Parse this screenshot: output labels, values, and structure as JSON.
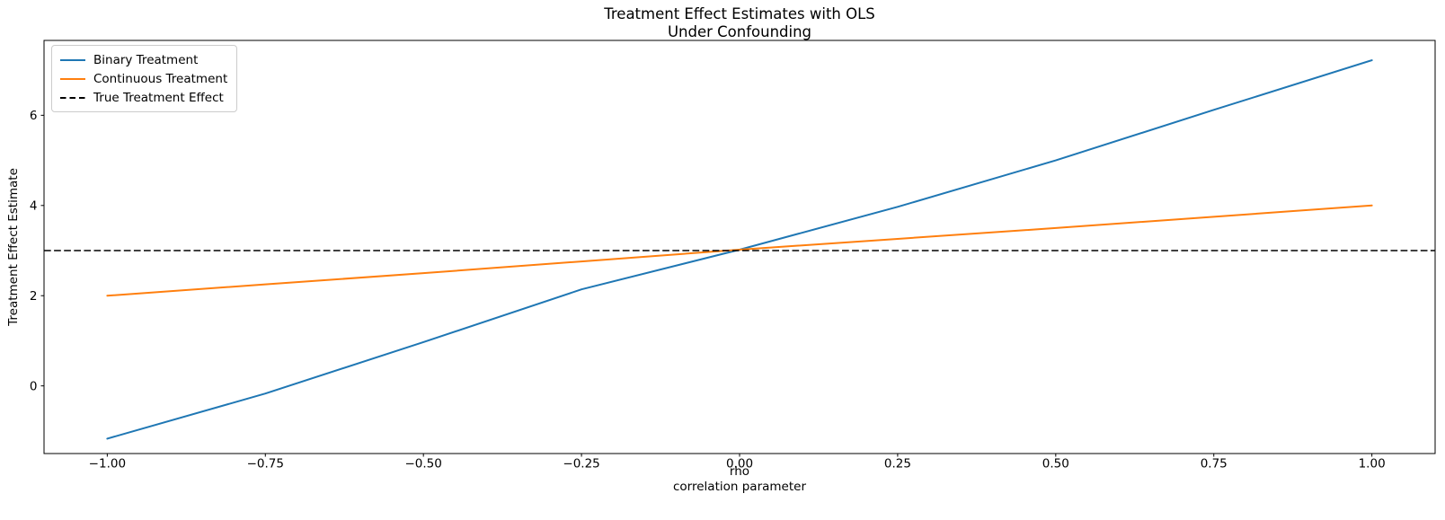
{
  "chart_data": {
    "type": "line",
    "title": [
      "Treatment Effect Estimates with OLS",
      "Under Confounding"
    ],
    "xlabel": [
      "rho",
      "correlation parameter"
    ],
    "ylabel": "Treatment Effect Estimate",
    "x": [
      -1.0,
      -0.75,
      -0.5,
      -0.25,
      0.0,
      0.25,
      0.5,
      0.75,
      1.0
    ],
    "series": [
      {
        "name": "Binary Treatment",
        "color": "#1f77b4",
        "dash": "solid",
        "values": [
          -1.17,
          -0.17,
          0.97,
          2.14,
          3.02,
          3.97,
          5.0,
          6.12,
          7.22
        ]
      },
      {
        "name": "Continuous Treatment",
        "color": "#ff7f0e",
        "dash": "solid",
        "values": [
          2.0,
          2.25,
          2.5,
          2.76,
          3.02,
          3.26,
          3.5,
          3.75,
          4.0
        ]
      },
      {
        "name": "True Treatment Effect",
        "color": "#000000",
        "dash": "dashed",
        "hline": 3.0
      }
    ],
    "xlim": [
      -1.1,
      1.1
    ],
    "ylim": [
      -1.5,
      7.66
    ],
    "xticks": [
      -1.0,
      -0.75,
      -0.5,
      -0.25,
      0.0,
      0.25,
      0.5,
      0.75,
      1.0
    ],
    "xtick_labels": [
      "−1.00",
      "−0.75",
      "−0.50",
      "−0.25",
      "0.00",
      "0.25",
      "0.50",
      "0.75",
      "1.00"
    ],
    "yticks": [
      0,
      2,
      4,
      6
    ],
    "ytick_labels": [
      "0",
      "2",
      "4",
      "6"
    ],
    "legend_position": "upper left",
    "grid": false
  },
  "colors": {
    "background": "#ffffff",
    "spine": "#000000",
    "text": "#000000",
    "legend_border": "#cccccc"
  }
}
